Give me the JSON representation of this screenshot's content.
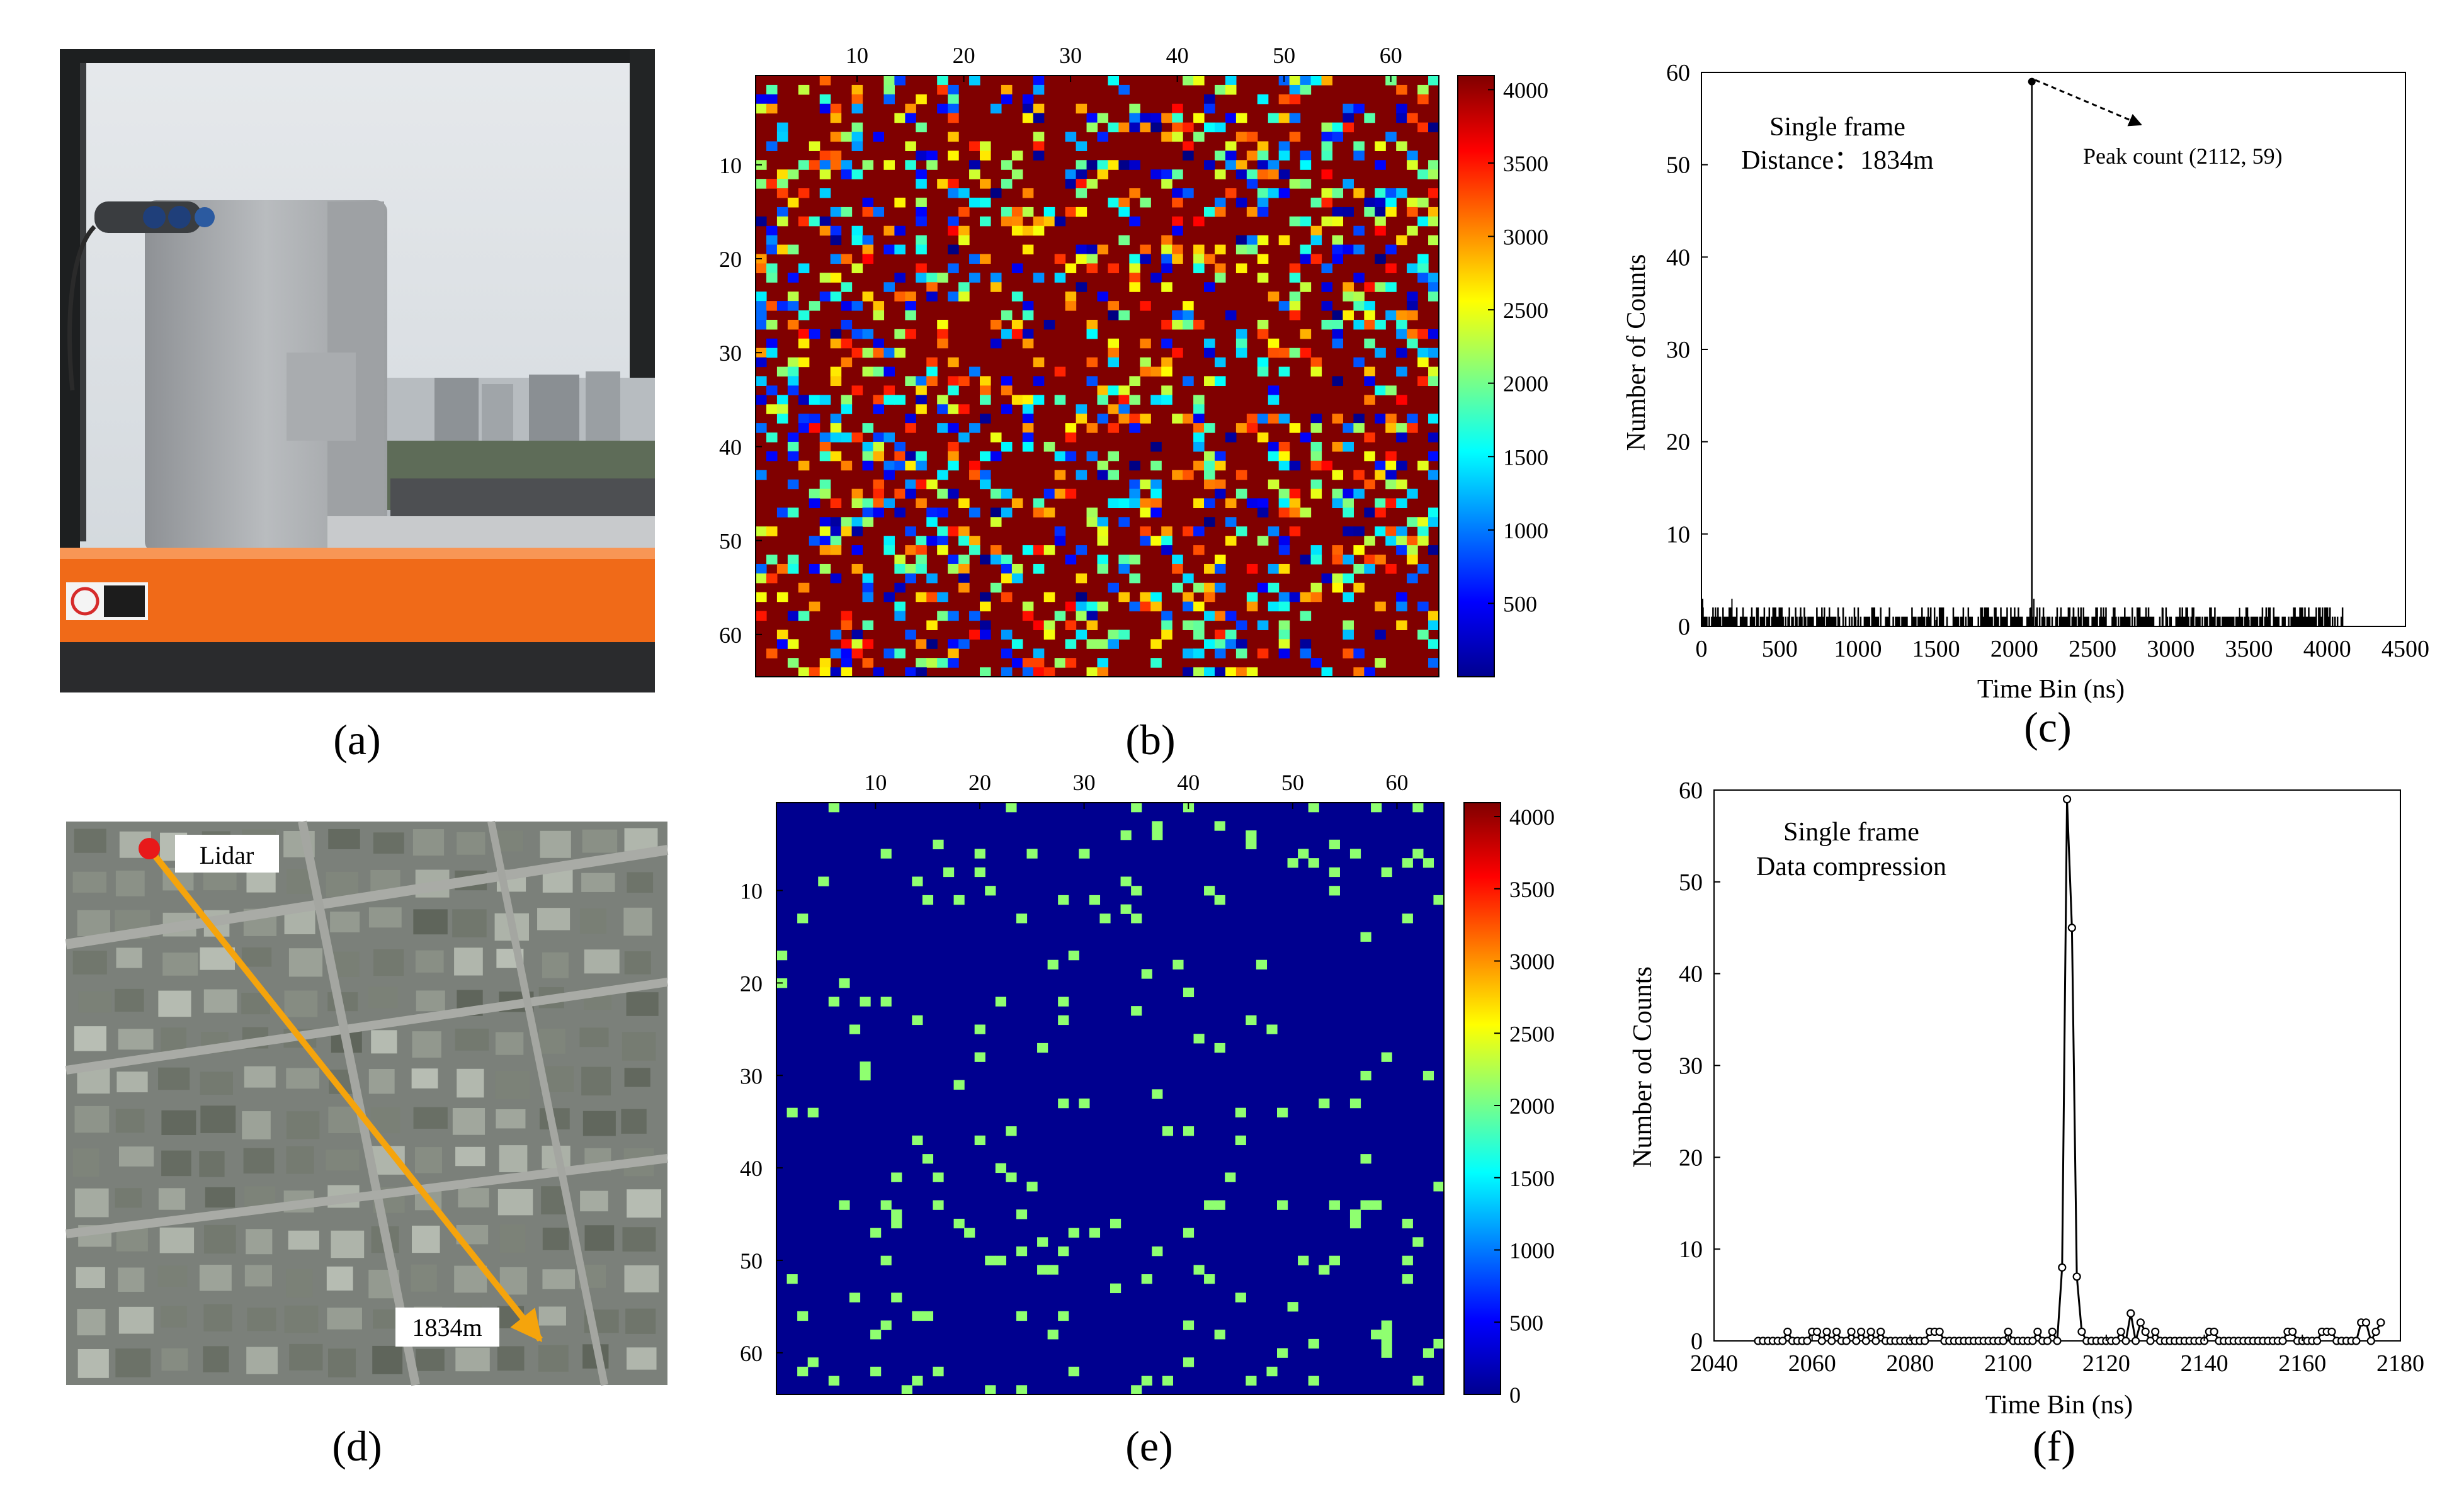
{
  "panel_labels": [
    "(a)",
    "(b)",
    "(c)",
    "(d)",
    "(e)",
    "(f)"
  ],
  "map": {
    "lidar_label": "Lidar",
    "distance_label": "1834m",
    "colors": {
      "marker": "#e8191a",
      "arrow": "#f5a40c"
    }
  },
  "colors": {
    "map_high": "#800000",
    "map_low": "#00008f",
    "arrow": "#f5a40c"
  },
  "chart_data": [
    {
      "panel": "b",
      "type": "heatmap",
      "grid_size": [
        64,
        64
      ],
      "x_ticks": [
        10,
        20,
        30,
        40,
        50,
        60
      ],
      "y_ticks": [
        10,
        20,
        30,
        40,
        50,
        60
      ],
      "x_axis_position": "top",
      "colormap": "jet",
      "colorbar_ticks": [
        500,
        1000,
        1500,
        2000,
        2500,
        3000,
        3500,
        4000
      ],
      "clim": [
        0,
        4096
      ],
      "background_value": 4096,
      "scattered_pixel_fraction": 0.3,
      "scattered_values_range": [
        0,
        3600
      ]
    },
    {
      "panel": "c",
      "type": "line",
      "xlabel": "Time Bin (ns)",
      "ylabel": "Number of Counts",
      "xlim": [
        0,
        4500
      ],
      "ylim": [
        0,
        60
      ],
      "x_ticks": [
        0,
        500,
        1000,
        1500,
        2000,
        2500,
        3000,
        3500,
        4000,
        4500
      ],
      "y_ticks": [
        0,
        10,
        20,
        30,
        40,
        50,
        60
      ],
      "annotations": [
        "Single frame",
        "Distance：1834m",
        "Peak count (2112, 59)"
      ],
      "peak": {
        "x": 2112,
        "y": 59
      },
      "spikes": [
        [
          0,
          8
        ],
        [
          8,
          3
        ],
        [
          195,
          3
        ],
        [
          2100,
          2
        ],
        [
          2125,
          3
        ],
        [
          2380,
          2
        ],
        [
          2950,
          2
        ],
        [
          3440,
          2
        ]
      ],
      "noise_range": [
        0,
        4100
      ],
      "noise_level": [
        0,
        2
      ]
    },
    {
      "panel": "e",
      "type": "heatmap",
      "grid_size": [
        64,
        64
      ],
      "x_ticks": [
        10,
        20,
        30,
        40,
        50,
        60
      ],
      "y_ticks": [
        10,
        20,
        30,
        40,
        50,
        60
      ],
      "x_axis_position": "top",
      "colormap": "jet",
      "colorbar_ticks": [
        0,
        500,
        1000,
        1500,
        2000,
        2500,
        3000,
        3500,
        4000
      ],
      "clim": [
        0,
        4096
      ],
      "background_value": 0,
      "highlight_value": 2112,
      "highlight_pixel_fraction": 0.045
    },
    {
      "panel": "f",
      "type": "line",
      "xlabel": "Time Bin (ns)",
      "ylabel": "Number od Counts",
      "xlim": [
        2040,
        2180
      ],
      "ylim": [
        0,
        60
      ],
      "x_ticks": [
        2040,
        2060,
        2080,
        2100,
        2120,
        2140,
        2160,
        2180
      ],
      "y_ticks": [
        0,
        10,
        20,
        30,
        40,
        50,
        60
      ],
      "annotations": [
        "Single frame",
        "Data compression"
      ],
      "x": [
        2049,
        2050,
        2051,
        2052,
        2053,
        2054,
        2055,
        2056,
        2057,
        2058,
        2059,
        2060,
        2061,
        2062,
        2063,
        2064,
        2065,
        2066,
        2067,
        2068,
        2069,
        2070,
        2071,
        2072,
        2073,
        2074,
        2075,
        2076,
        2077,
        2078,
        2079,
        2080,
        2081,
        2082,
        2083,
        2084,
        2085,
        2086,
        2087,
        2088,
        2089,
        2090,
        2091,
        2092,
        2093,
        2094,
        2095,
        2096,
        2097,
        2098,
        2099,
        2100,
        2101,
        2102,
        2103,
        2104,
        2105,
        2106,
        2107,
        2108,
        2109,
        2110,
        2111,
        2112,
        2113,
        2114,
        2115,
        2116,
        2117,
        2118,
        2119,
        2120,
        2121,
        2122,
        2123,
        2124,
        2125,
        2126,
        2127,
        2128,
        2129,
        2130,
        2131,
        2132,
        2133,
        2134,
        2135,
        2136,
        2137,
        2138,
        2139,
        2140,
        2141,
        2142,
        2143,
        2144,
        2145,
        2146,
        2147,
        2148,
        2149,
        2150,
        2151,
        2152,
        2153,
        2154,
        2155,
        2156,
        2157,
        2158,
        2159,
        2160,
        2161,
        2162,
        2163,
        2164,
        2165,
        2166,
        2167,
        2168,
        2169,
        2170,
        2171,
        2172,
        2173,
        2174,
        2175,
        2176
      ],
      "y": [
        0,
        0,
        0,
        0,
        0,
        0,
        1,
        0,
        0,
        0,
        0,
        1,
        1,
        0,
        1,
        0,
        1,
        0,
        0,
        1,
        0,
        1,
        0,
        1,
        0,
        1,
        0,
        0,
        0,
        0,
        0,
        0,
        0,
        0,
        0,
        1,
        1,
        1,
        0,
        0,
        0,
        0,
        0,
        0,
        0,
        0,
        0,
        0,
        0,
        0,
        0,
        1,
        0,
        0,
        0,
        0,
        0,
        1,
        0,
        0,
        1,
        0,
        8,
        59,
        45,
        7,
        1,
        0,
        0,
        0,
        0,
        0,
        0,
        0,
        1,
        0,
        3,
        0,
        2,
        1,
        0,
        1,
        0,
        0,
        0,
        0,
        0,
        0,
        0,
        0,
        0,
        0,
        1,
        1,
        0,
        0,
        0,
        0,
        0,
        0,
        0,
        0,
        0,
        0,
        0,
        0,
        0,
        0,
        1,
        1,
        0,
        0,
        0,
        0,
        0,
        1,
        1,
        1,
        0,
        0,
        0,
        0,
        0,
        2,
        2,
        0,
        1,
        2
      ]
    }
  ]
}
